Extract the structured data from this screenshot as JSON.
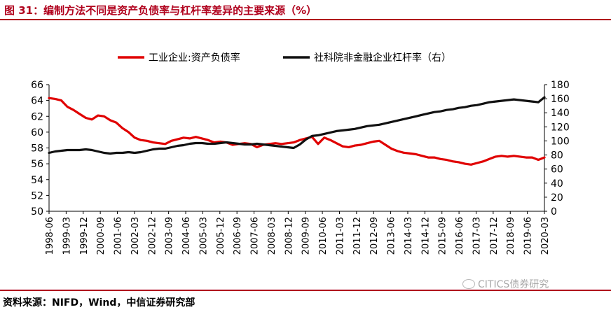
{
  "header": {
    "title": "图 31：编制方法不同是资产负债率与杠杆率差异的主要来源（%）"
  },
  "footer": {
    "source": "资料来源：NIFD，Wind，中信证券研究部"
  },
  "watermark": {
    "text": "CITICS债券研究"
  },
  "chart_data": {
    "type": "line",
    "title": "",
    "legend_position": "top",
    "x_labels": [
      "1998-06",
      "1999-03",
      "1999-12",
      "2000-09",
      "2001-06",
      "2002-03",
      "2002-12",
      "2003-09",
      "2004-06",
      "2005-03",
      "2005-12",
      "2006-09",
      "2007-06",
      "2008-03",
      "2008-12",
      "2009-09",
      "2010-06",
      "2011-03",
      "2011-12",
      "2012-09",
      "2013-06",
      "2014-03",
      "2014-12",
      "2015-09",
      "2016-06",
      "2017-03",
      "2017-12",
      "2018-09",
      "2019-06",
      "2020-03"
    ],
    "left_axis": {
      "min": 50,
      "max": 66,
      "step": 2,
      "ticks": [
        "66",
        "64",
        "62",
        "60",
        "58",
        "56",
        "54",
        "52",
        "50"
      ]
    },
    "right_axis": {
      "min": 0,
      "max": 180,
      "step": 20,
      "ticks": [
        "180",
        "160",
        "140",
        "120",
        "100",
        "80",
        "60",
        "40",
        "20",
        "0"
      ]
    },
    "series": [
      {
        "name": "工业企业:资产负债率",
        "axis": "left",
        "color": "#e00000",
        "values": [
          64.3,
          64.2,
          64.0,
          63.2,
          62.8,
          62.3,
          61.8,
          61.6,
          62.1,
          62.0,
          61.5,
          61.2,
          60.5,
          60.0,
          59.3,
          59.0,
          58.9,
          58.7,
          58.6,
          58.5,
          58.9,
          59.1,
          59.3,
          59.2,
          59.4,
          59.2,
          59.0,
          58.7,
          58.8,
          58.7,
          58.4,
          58.5,
          58.6,
          58.5,
          58.1,
          58.4,
          58.5,
          58.6,
          58.5,
          58.6,
          58.7,
          59.0,
          59.2,
          59.4,
          58.5,
          59.3,
          59.0,
          58.6,
          58.2,
          58.1,
          58.3,
          58.4,
          58.6,
          58.8,
          58.9,
          58.4,
          57.9,
          57.6,
          57.4,
          57.3,
          57.2,
          57.0,
          56.8,
          56.8,
          56.6,
          56.5,
          56.3,
          56.2,
          56.0,
          55.9,
          56.1,
          56.3,
          56.6,
          56.9,
          57.0,
          56.9,
          57.0,
          56.9,
          56.8,
          56.8,
          56.5,
          56.8
        ]
      },
      {
        "name": "社科院非金融企业杠杆率（右）",
        "axis": "right",
        "color": "#111111",
        "values": [
          83,
          85,
          86,
          87,
          87,
          87,
          88,
          87,
          85,
          83,
          82,
          83,
          83,
          84,
          83,
          84,
          86,
          88,
          89,
          89,
          91,
          93,
          94,
          96,
          97,
          97,
          96,
          96,
          97,
          98,
          97,
          96,
          95,
          95,
          96,
          95,
          94,
          93,
          92,
          91,
          90,
          95,
          102,
          107,
          108,
          110,
          112,
          114,
          115,
          116,
          117,
          119,
          121,
          122,
          123,
          125,
          127,
          129,
          131,
          133,
          135,
          137,
          139,
          141,
          142,
          144,
          145,
          147,
          148,
          150,
          151,
          153,
          155,
          156,
          157,
          158,
          159,
          158,
          157,
          156,
          155,
          162
        ]
      }
    ]
  }
}
